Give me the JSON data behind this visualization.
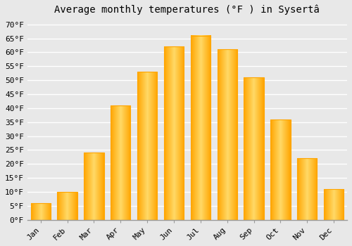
{
  "title": "Average monthly temperatures (°F ) in Sysertâ",
  "months": [
    "Jan",
    "Feb",
    "Mar",
    "Apr",
    "May",
    "Jun",
    "Jul",
    "Aug",
    "Sep",
    "Oct",
    "Nov",
    "Dec"
  ],
  "values": [
    6,
    10,
    24,
    41,
    53,
    62,
    66,
    61,
    51,
    36,
    22,
    11
  ],
  "bar_color_center": "#FFD700",
  "bar_color_edge": "#FFA500",
  "background_color": "#E8E8E8",
  "grid_color": "#FFFFFF",
  "ylim": [
    0,
    72
  ],
  "yticks": [
    0,
    5,
    10,
    15,
    20,
    25,
    30,
    35,
    40,
    45,
    50,
    55,
    60,
    65,
    70
  ],
  "title_fontsize": 10,
  "tick_fontsize": 8
}
